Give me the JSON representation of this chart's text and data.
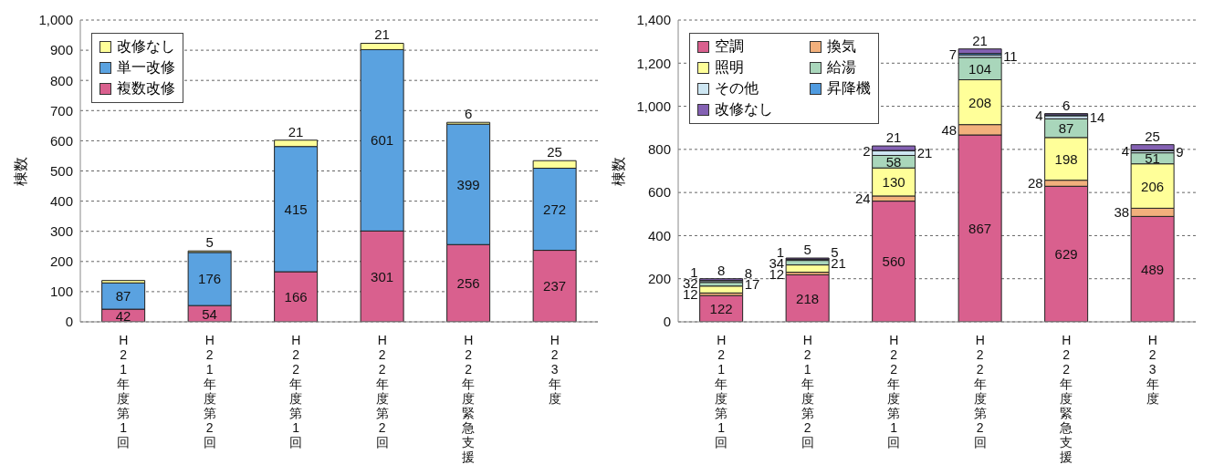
{
  "chart_data": [
    {
      "type": "bar",
      "stacked": true,
      "ylabel": "棟数",
      "categories": [
        "H21年度第1回",
        "H21年度第2回",
        "H22年度第1回",
        "H22年度第2回",
        "H22年度緊急支援",
        "H23年度"
      ],
      "series": [
        {
          "name": "複数改修",
          "color": "#d9608e",
          "values": [
            42,
            54,
            166,
            301,
            256,
            237
          ],
          "value_labels": [
            "42",
            "54",
            "166",
            "301",
            "256",
            "237"
          ]
        },
        {
          "name": "単一改修",
          "color": "#5aa2e0",
          "values": [
            87,
            176,
            415,
            601,
            399,
            272
          ],
          "value_labels": [
            "87",
            "176",
            "415",
            "601",
            "399",
            "272"
          ]
        },
        {
          "name": "改修なし",
          "color": "#ffff99",
          "values": [
            8,
            5,
            21,
            21,
            6,
            25
          ],
          "value_labels": [
            null,
            "5",
            "21",
            "21",
            "6",
            "25"
          ]
        }
      ],
      "ylim": [
        0,
        1000
      ],
      "yticks": [
        0,
        100,
        200,
        300,
        400,
        500,
        600,
        700,
        800,
        900,
        {
          "value": 1000,
          "label": "1,000"
        }
      ],
      "grid": "y",
      "legend": "top left"
    },
    {
      "type": "bar",
      "stacked": true,
      "ylabel": "棟数",
      "categories": [
        "H21年度第1回",
        "H21年度第2回",
        "H22年度第1回",
        "H22年度第2回",
        "H22年度緊急支援",
        "H23年度"
      ],
      "series": [
        {
          "name": "空調",
          "color": "#d9608e",
          "values": [
            122,
            218,
            560,
            867,
            629,
            489
          ]
        },
        {
          "name": "換気",
          "color": "#f2b07c",
          "values": [
            12,
            12,
            24,
            48,
            28,
            38
          ]
        },
        {
          "name": "照明",
          "color": "#ffff99",
          "values": [
            32,
            34,
            130,
            208,
            198,
            206
          ]
        },
        {
          "name": "給湯",
          "color": "#a9d6bb",
          "values": [
            17,
            21,
            58,
            104,
            87,
            51
          ]
        },
        {
          "name": "その他",
          "color": "#cde6f2",
          "values": [
            8,
            5,
            21,
            11,
            14,
            9
          ]
        },
        {
          "name": "昇降機",
          "color": "#4f9be0",
          "values": [
            1,
            1,
            2,
            7,
            4,
            4
          ]
        },
        {
          "name": "改修なし",
          "color": "#8461b3",
          "values": [
            8,
            5,
            21,
            21,
            6,
            25
          ]
        }
      ],
      "ylim": [
        0,
        1400
      ],
      "yticks": [
        0,
        200,
        400,
        600,
        800,
        {
          "value": 1000,
          "label": "1,000"
        },
        {
          "value": 1200,
          "label": "1,200"
        },
        {
          "value": 1400,
          "label": "1,400"
        }
      ],
      "grid": "y",
      "legend": "top left",
      "data_labels": true
    }
  ]
}
